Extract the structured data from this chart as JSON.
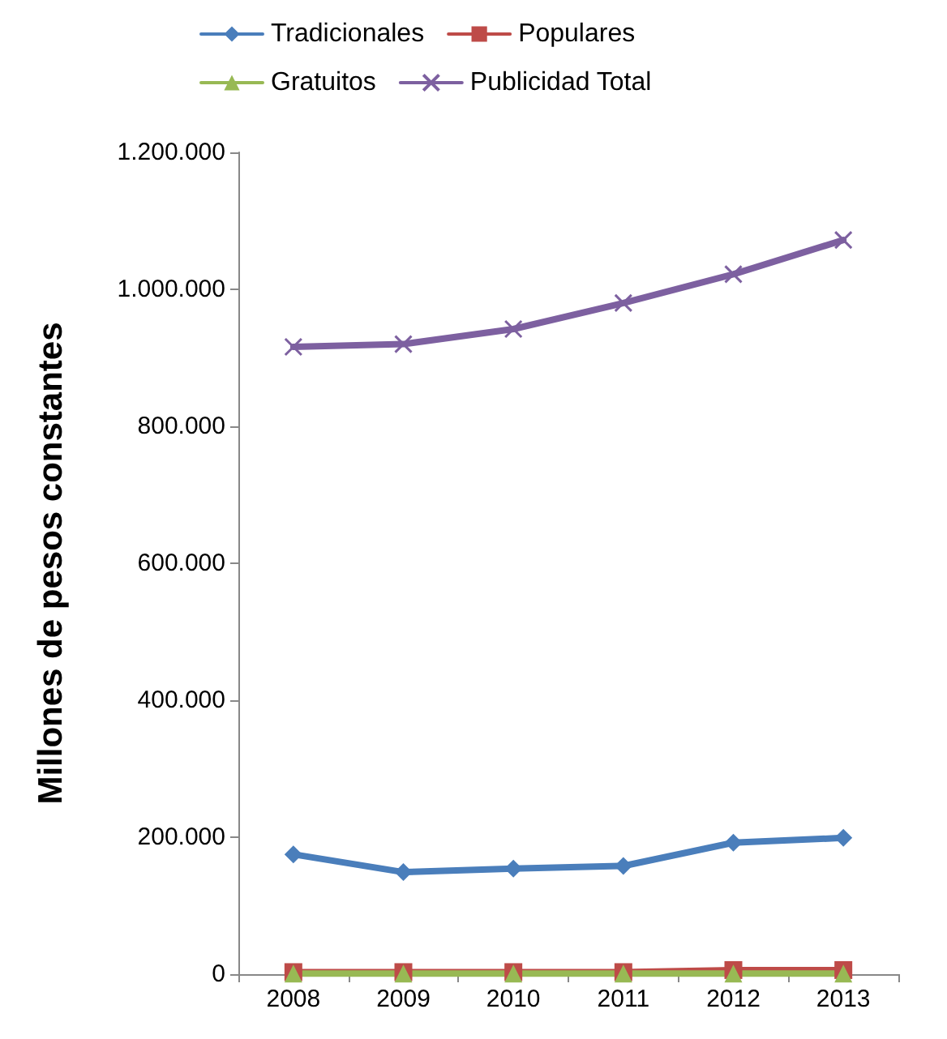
{
  "chart_data": {
    "type": "line",
    "ylabel": "Millones de pesos constantes",
    "categories": [
      "2008",
      "2009",
      "2010",
      "2011",
      "2012",
      "2013"
    ],
    "series": [
      {
        "name": "Tradicionales",
        "color": "#4a7ebb",
        "marker": "diamond",
        "values": [
          175000,
          149000,
          154000,
          158000,
          192000,
          199000
        ]
      },
      {
        "name": "Populares",
        "color": "#be4b48",
        "marker": "square",
        "values": [
          3000,
          3000,
          3000,
          3000,
          6000,
          6000
        ]
      },
      {
        "name": "Gratuitos",
        "color": "#98b954",
        "marker": "triangle",
        "values": [
          1000,
          1000,
          1000,
          1000,
          1000,
          1000
        ]
      },
      {
        "name": "Publicidad Total",
        "color": "#7d60a0",
        "marker": "cross",
        "values": [
          916000,
          920000,
          942000,
          980000,
          1022000,
          1072000
        ]
      }
    ],
    "ylim": [
      0,
      1200000
    ],
    "yticks": [
      0,
      {
        "value": 200000,
        "label": "200.000"
      },
      {
        "value": 400000,
        "label": "400.000"
      },
      {
        "value": 600000,
        "label": "600.000"
      },
      {
        "value": 800000,
        "label": "800.000"
      },
      {
        "value": 1000000,
        "label": "1.000.000"
      },
      {
        "value": 1200000,
        "label": "1.200.000"
      }
    ],
    "grid": false,
    "legend": "top",
    "line_style": "solid"
  }
}
